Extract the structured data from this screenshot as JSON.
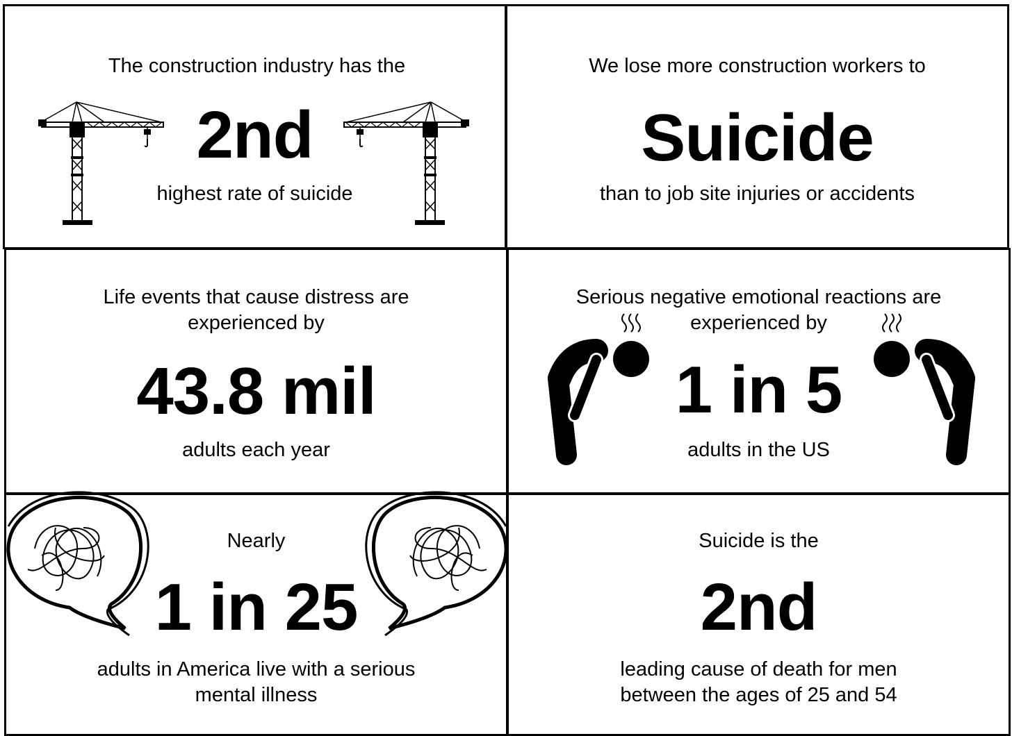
{
  "panels": [
    {
      "top": "The construction industry has the",
      "headline": "2nd",
      "bottom": "highest rate of suicide"
    },
    {
      "top": "We lose more construction workers to",
      "headline": "Suicide",
      "bottom": "than to job site injuries or accidents"
    },
    {
      "top": "Life events that cause distress are experienced by",
      "headline": "43.8 mil",
      "bottom": "adults each year"
    },
    {
      "top": "Serious negative emotional reactions are experienced by",
      "headline": "1 in 5",
      "bottom": "adults in the US"
    },
    {
      "top": "Nearly",
      "headline": "1 in 25",
      "bottom": "adults in America live with a serious mental illness"
    },
    {
      "top": "Suicide is the",
      "headline": "2nd",
      "bottom": "leading cause of death for men between the ages of 25 and 54"
    }
  ]
}
